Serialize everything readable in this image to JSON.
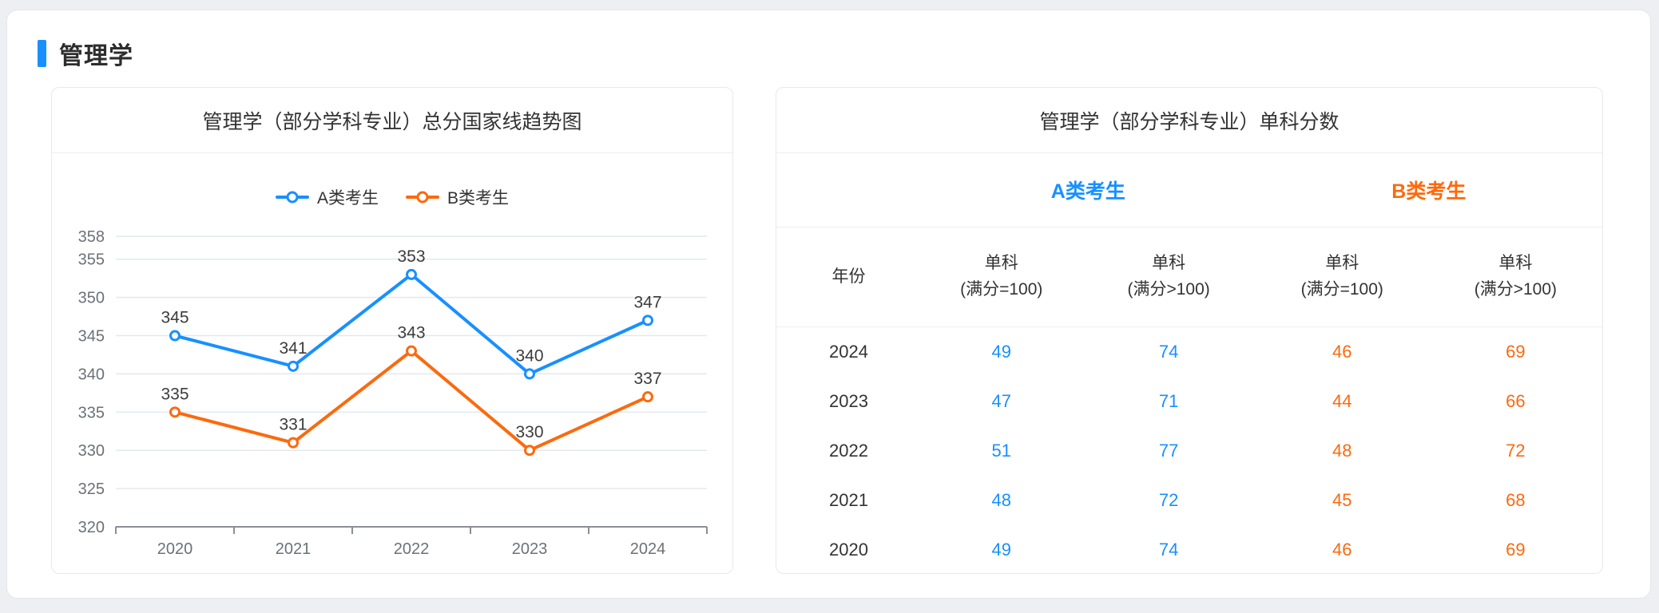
{
  "section": {
    "title": "管理学"
  },
  "colors": {
    "accent_blue": "#1890ff",
    "accent_orange": "#fb6a0e",
    "grid_line": "#e4e8f1",
    "axis_line": "#8a8e96",
    "tick_text": "#6e7079",
    "label_text": "#3c3c3c",
    "title_text": "#333333"
  },
  "chart_card": {
    "title": "管理学（部分学科专业）总分国家线趋势图"
  },
  "table_card": {
    "title": "管理学（部分学科专业）单科分数",
    "group_headers": [
      "A类考生",
      "B类考生"
    ],
    "columns": [
      {
        "line1": "年份",
        "line2": ""
      },
      {
        "line1": "单科",
        "line2": "(满分=100)"
      },
      {
        "line1": "单科",
        "line2": "(满分>100)"
      },
      {
        "line1": "单科",
        "line2": "(满分=100)"
      },
      {
        "line1": "单科",
        "line2": "(满分>100)"
      }
    ]
  },
  "chart_data": [
    {
      "type": "line",
      "title": "管理学（部分学科专业）总分国家线趋势图",
      "categories": [
        "2020",
        "2021",
        "2022",
        "2023",
        "2024"
      ],
      "series": [
        {
          "name": "A类考生",
          "color": "#1890ff",
          "values": [
            345,
            341,
            353,
            340,
            347
          ]
        },
        {
          "name": "B类考生",
          "color": "#fb6a0e",
          "values": [
            335,
            331,
            343,
            330,
            337
          ]
        }
      ],
      "ylim": [
        320,
        358
      ],
      "yticks": [
        320,
        325,
        330,
        335,
        340,
        345,
        350,
        355,
        358
      ],
      "grid": true,
      "legend_position": "top",
      "data_labels": true,
      "xlabel": "",
      "ylabel": ""
    },
    {
      "type": "table",
      "title": "管理学（部分学科专业）单科分数",
      "group_headers": [
        "A类考生",
        "B类考生"
      ],
      "columns": [
        "年份",
        "单科 (满分=100)",
        "单科 (满分>100)",
        "单科 (满分=100)",
        "单科 (满分>100)"
      ],
      "rows": [
        [
          "2024",
          "49",
          "74",
          "46",
          "69"
        ],
        [
          "2023",
          "47",
          "71",
          "44",
          "66"
        ],
        [
          "2022",
          "51",
          "77",
          "48",
          "72"
        ],
        [
          "2021",
          "48",
          "72",
          "45",
          "68"
        ],
        [
          "2020",
          "49",
          "74",
          "46",
          "69"
        ]
      ]
    }
  ]
}
